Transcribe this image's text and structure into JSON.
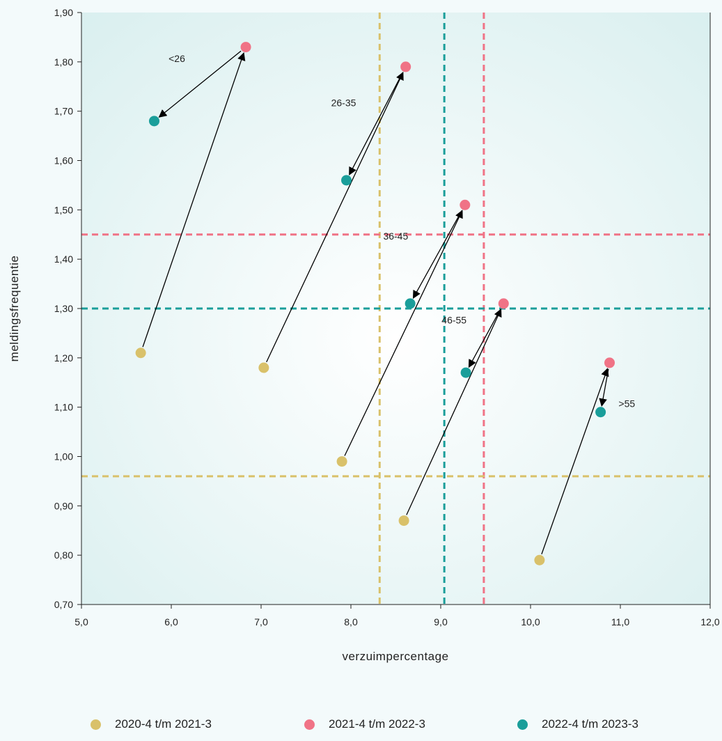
{
  "colors": {
    "series_2020": "#d9c16a",
    "series_2021": "#f07386",
    "series_2022": "#1a9e9a",
    "arrow": "#000000",
    "axis": "#222222"
  },
  "chart_data": {
    "type": "scatter",
    "xlabel": "verzuimpercentage",
    "ylabel": "meldingsfrequentie",
    "xlim": [
      5.0,
      12.0
    ],
    "ylim": [
      0.7,
      1.9
    ],
    "x_ticks": [
      "5,0",
      "6,0",
      "7,0",
      "8,0",
      "9,0",
      "10,0",
      "11,0",
      "12,0"
    ],
    "y_ticks": [
      "0,70",
      "0,80",
      "0,90",
      "1,00",
      "1,10",
      "1,20",
      "1,30",
      "1,40",
      "1,50",
      "1,60",
      "1,70",
      "1,80",
      "1,90"
    ],
    "grid": false,
    "legend_position": "bottom",
    "series": [
      {
        "name": "2020-4 t/m 2021-3",
        "color_key": "series_2020",
        "points": [
          {
            "x": 5.66,
            "y": 1.21
          },
          {
            "x": 7.03,
            "y": 1.18
          },
          {
            "x": 7.9,
            "y": 0.99
          },
          {
            "x": 8.59,
            "y": 0.87
          },
          {
            "x": 10.1,
            "y": 0.79
          }
        ]
      },
      {
        "name": "2021-4 t/m 2022-3",
        "color_key": "series_2021",
        "points": [
          {
            "x": 6.83,
            "y": 1.83
          },
          {
            "x": 8.61,
            "y": 1.79
          },
          {
            "x": 9.27,
            "y": 1.51
          },
          {
            "x": 9.7,
            "y": 1.31
          },
          {
            "x": 10.88,
            "y": 1.19
          }
        ]
      },
      {
        "name": "2022-4 t/m 2023-3",
        "color_key": "series_2022",
        "points": [
          {
            "x": 5.81,
            "y": 1.68
          },
          {
            "x": 7.95,
            "y": 1.56
          },
          {
            "x": 8.66,
            "y": 1.31
          },
          {
            "x": 9.28,
            "y": 1.17
          },
          {
            "x": 10.78,
            "y": 1.09
          }
        ]
      }
    ],
    "groups": [
      {
        "label": "<26",
        "label_pos": {
          "x": 5.97,
          "y": 1.8
        }
      },
      {
        "label": "26-35",
        "label_pos": {
          "x": 7.78,
          "y": 1.71
        }
      },
      {
        "label": "36-45",
        "label_pos": {
          "x": 8.36,
          "y": 1.44
        }
      },
      {
        "label": "46-55",
        "label_pos": {
          "x": 9.01,
          "y": 1.27
        }
      },
      {
        "label": ">55",
        "label_pos": {
          "x": 10.98,
          "y": 1.1
        }
      }
    ],
    "reference_lines": [
      {
        "axis": "x",
        "value": 8.32,
        "color_key": "series_2020"
      },
      {
        "axis": "x",
        "value": 9.04,
        "color_key": "series_2022"
      },
      {
        "axis": "x",
        "value": 9.48,
        "color_key": "series_2021"
      },
      {
        "axis": "y",
        "value": 1.45,
        "color_key": "series_2021"
      },
      {
        "axis": "y",
        "value": 1.3,
        "color_key": "series_2022"
      },
      {
        "axis": "y",
        "value": 0.96,
        "color_key": "series_2020"
      }
    ]
  },
  "legend": [
    {
      "label": "2020-4 t/m 2021-3",
      "color_key": "series_2020"
    },
    {
      "label": "2021-4 t/m 2022-3",
      "color_key": "series_2021"
    },
    {
      "label": "2022-4 t/m 2023-3",
      "color_key": "series_2022"
    }
  ]
}
